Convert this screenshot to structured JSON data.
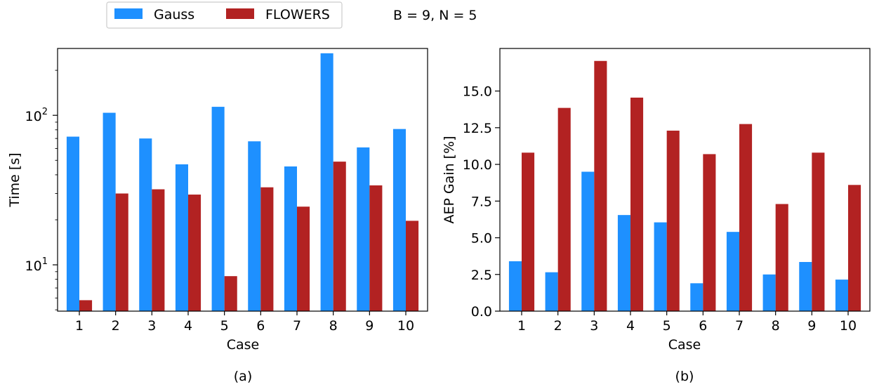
{
  "legend": {
    "items": [
      {
        "label": "Gauss",
        "color": "#1e90ff"
      },
      {
        "label": "FLOWERS",
        "color": "#b22222"
      }
    ],
    "annotation": "B = 9, N = 5"
  },
  "colors": {
    "gauss": "#1e90ff",
    "flowers": "#b22222"
  },
  "chart_data": [
    {
      "type": "bar",
      "caption": "(a)",
      "xlabel": "Case",
      "ylabel": "Time [s]",
      "yscale": "log",
      "ylim": [
        4.9,
        280
      ],
      "categories": [
        "1",
        "2",
        "3",
        "4",
        "5",
        "6",
        "7",
        "8",
        "9",
        "10"
      ],
      "yticks": [
        {
          "value": 10,
          "base": "10",
          "exp": "1"
        },
        {
          "value": 100,
          "base": "10",
          "exp": "2"
        }
      ],
      "series": [
        {
          "name": "Gauss",
          "values": [
            72,
            104,
            70,
            47,
            114,
            67,
            45.5,
            260,
            61,
            81
          ]
        },
        {
          "name": "FLOWERS",
          "values": [
            5.8,
            30,
            32,
            29.5,
            8.4,
            33,
            24.5,
            49,
            34,
            19.7
          ]
        }
      ],
      "grid": false
    },
    {
      "type": "bar",
      "caption": "(b)",
      "xlabel": "Case",
      "ylabel": "AEP Gain [%]",
      "yscale": "linear",
      "ylim": [
        0,
        17.9
      ],
      "categories": [
        "1",
        "2",
        "3",
        "4",
        "5",
        "6",
        "7",
        "8",
        "9",
        "10"
      ],
      "yticks": [
        "0.0",
        "2.5",
        "5.0",
        "7.5",
        "10.0",
        "12.5",
        "15.0"
      ],
      "series": [
        {
          "name": "Gauss",
          "values": [
            3.4,
            2.65,
            9.5,
            6.55,
            6.05,
            1.9,
            5.4,
            2.5,
            3.35,
            2.15
          ]
        },
        {
          "name": "FLOWERS",
          "values": [
            10.8,
            13.85,
            17.05,
            14.55,
            12.3,
            10.7,
            12.75,
            7.3,
            10.8,
            8.6
          ]
        }
      ],
      "grid": false
    }
  ]
}
